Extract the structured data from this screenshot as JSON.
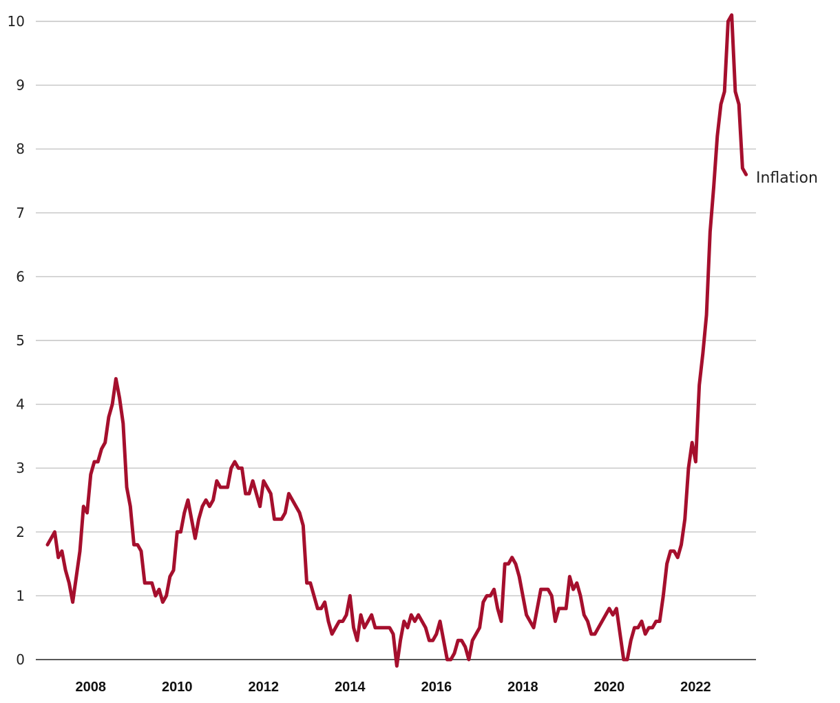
{
  "chart_data": {
    "type": "line",
    "title": "",
    "xlabel": "",
    "ylabel": "",
    "ylim": [
      0,
      10
    ],
    "xlim": [
      "2007-01",
      "2023-03"
    ],
    "grid": true,
    "legend": "none",
    "y_ticks": [
      "0",
      "1",
      "2",
      "3",
      "4",
      "5",
      "6",
      "7",
      "8",
      "9",
      "10"
    ],
    "x_ticks": [
      "2008",
      "2010",
      "2012",
      "2014",
      "2016",
      "2018",
      "2020",
      "2022"
    ],
    "colors": {
      "series": "#a50f2d",
      "grid": "#c4c4c4",
      "axis": "#222222"
    },
    "series": [
      {
        "name": "Inflation",
        "points": [
          [
            "2007-01",
            1.8
          ],
          [
            "2007-02",
            1.9
          ],
          [
            "2007-03",
            2.0
          ],
          [
            "2007-04",
            1.6
          ],
          [
            "2007-05",
            1.7
          ],
          [
            "2007-06",
            1.4
          ],
          [
            "2007-07",
            1.2
          ],
          [
            "2007-08",
            0.9
          ],
          [
            "2007-09",
            1.3
          ],
          [
            "2007-10",
            1.7
          ],
          [
            "2007-11",
            2.4
          ],
          [
            "2007-12",
            2.3
          ],
          [
            "2008-01",
            2.9
          ],
          [
            "2008-02",
            3.1
          ],
          [
            "2008-03",
            3.1
          ],
          [
            "2008-04",
            3.3
          ],
          [
            "2008-05",
            3.4
          ],
          [
            "2008-06",
            3.8
          ],
          [
            "2008-07",
            4.0
          ],
          [
            "2008-08",
            4.4
          ],
          [
            "2008-09",
            4.1
          ],
          [
            "2008-10",
            3.7
          ],
          [
            "2008-11",
            2.7
          ],
          [
            "2008-12",
            2.4
          ],
          [
            "2009-01",
            1.8
          ],
          [
            "2009-02",
            1.8
          ],
          [
            "2009-03",
            1.7
          ],
          [
            "2009-04",
            1.2
          ],
          [
            "2009-05",
            1.2
          ],
          [
            "2009-06",
            1.2
          ],
          [
            "2009-07",
            1.0
          ],
          [
            "2009-08",
            1.1
          ],
          [
            "2009-09",
            0.9
          ],
          [
            "2009-10",
            1.0
          ],
          [
            "2009-11",
            1.3
          ],
          [
            "2009-12",
            1.4
          ],
          [
            "2010-01",
            2.0
          ],
          [
            "2010-02",
            2.0
          ],
          [
            "2010-03",
            2.3
          ],
          [
            "2010-04",
            2.5
          ],
          [
            "2010-05",
            2.2
          ],
          [
            "2010-06",
            1.9
          ],
          [
            "2010-07",
            2.2
          ],
          [
            "2010-08",
            2.4
          ],
          [
            "2010-09",
            2.5
          ],
          [
            "2010-10",
            2.4
          ],
          [
            "2010-11",
            2.5
          ],
          [
            "2010-12",
            2.8
          ],
          [
            "2011-01",
            2.7
          ],
          [
            "2011-02",
            2.7
          ],
          [
            "2011-03",
            2.7
          ],
          [
            "2011-04",
            3.0
          ],
          [
            "2011-05",
            3.1
          ],
          [
            "2011-06",
            3.0
          ],
          [
            "2011-07",
            3.0
          ],
          [
            "2011-08",
            2.6
          ],
          [
            "2011-09",
            2.6
          ],
          [
            "2011-10",
            2.8
          ],
          [
            "2011-11",
            2.6
          ],
          [
            "2011-12",
            2.4
          ],
          [
            "2012-01",
            2.8
          ],
          [
            "2012-02",
            2.7
          ],
          [
            "2012-03",
            2.6
          ],
          [
            "2012-04",
            2.2
          ],
          [
            "2012-05",
            2.2
          ],
          [
            "2012-06",
            2.2
          ],
          [
            "2012-07",
            2.3
          ],
          [
            "2012-08",
            2.6
          ],
          [
            "2012-09",
            2.5
          ],
          [
            "2012-10",
            2.4
          ],
          [
            "2012-11",
            2.3
          ],
          [
            "2012-12",
            2.1
          ],
          [
            "2013-01",
            1.2
          ],
          [
            "2013-02",
            1.2
          ],
          [
            "2013-03",
            1.0
          ],
          [
            "2013-04",
            0.8
          ],
          [
            "2013-05",
            0.8
          ],
          [
            "2013-06",
            0.9
          ],
          [
            "2013-07",
            0.6
          ],
          [
            "2013-08",
            0.4
          ],
          [
            "2013-09",
            0.5
          ],
          [
            "2013-10",
            0.6
          ],
          [
            "2013-11",
            0.6
          ],
          [
            "2013-12",
            0.7
          ],
          [
            "2014-01",
            1.0
          ],
          [
            "2014-02",
            0.5
          ],
          [
            "2014-03",
            0.3
          ],
          [
            "2014-04",
            0.7
          ],
          [
            "2014-05",
            0.5
          ],
          [
            "2014-06",
            0.6
          ],
          [
            "2014-07",
            0.7
          ],
          [
            "2014-08",
            0.5
          ],
          [
            "2014-09",
            0.5
          ],
          [
            "2014-10",
            0.5
          ],
          [
            "2014-11",
            0.5
          ],
          [
            "2014-12",
            0.5
          ],
          [
            "2015-01",
            0.4
          ],
          [
            "2015-02",
            -0.1
          ],
          [
            "2015-03",
            0.3
          ],
          [
            "2015-04",
            0.6
          ],
          [
            "2015-05",
            0.5
          ],
          [
            "2015-06",
            0.7
          ],
          [
            "2015-07",
            0.6
          ],
          [
            "2015-08",
            0.7
          ],
          [
            "2015-09",
            0.6
          ],
          [
            "2015-10",
            0.5
          ],
          [
            "2015-11",
            0.3
          ],
          [
            "2015-12",
            0.3
          ],
          [
            "2016-01",
            0.4
          ],
          [
            "2016-02",
            0.6
          ],
          [
            "2016-03",
            0.3
          ],
          [
            "2016-04",
            0.0
          ],
          [
            "2016-05",
            0.0
          ],
          [
            "2016-06",
            0.1
          ],
          [
            "2016-07",
            0.3
          ],
          [
            "2016-08",
            0.3
          ],
          [
            "2016-09",
            0.2
          ],
          [
            "2016-10",
            0.0
          ],
          [
            "2016-11",
            0.3
          ],
          [
            "2016-12",
            0.4
          ],
          [
            "2017-01",
            0.5
          ],
          [
            "2017-02",
            0.9
          ],
          [
            "2017-03",
            1.0
          ],
          [
            "2017-04",
            1.0
          ],
          [
            "2017-05",
            1.1
          ],
          [
            "2017-06",
            0.8
          ],
          [
            "2017-07",
            0.6
          ],
          [
            "2017-08",
            1.5
          ],
          [
            "2017-09",
            1.5
          ],
          [
            "2017-10",
            1.6
          ],
          [
            "2017-11",
            1.5
          ],
          [
            "2017-12",
            1.3
          ],
          [
            "2018-01",
            1.0
          ],
          [
            "2018-02",
            0.7
          ],
          [
            "2018-03",
            0.6
          ],
          [
            "2018-04",
            0.5
          ],
          [
            "2018-05",
            0.8
          ],
          [
            "2018-06",
            1.1
          ],
          [
            "2018-07",
            1.1
          ],
          [
            "2018-08",
            1.1
          ],
          [
            "2018-09",
            1.0
          ],
          [
            "2018-10",
            0.6
          ],
          [
            "2018-11",
            0.8
          ],
          [
            "2018-12",
            0.8
          ],
          [
            "2019-01",
            0.8
          ],
          [
            "2019-02",
            1.3
          ],
          [
            "2019-03",
            1.1
          ],
          [
            "2019-04",
            1.2
          ],
          [
            "2019-05",
            1.0
          ],
          [
            "2019-06",
            0.7
          ],
          [
            "2019-07",
            0.6
          ],
          [
            "2019-08",
            0.4
          ],
          [
            "2019-09",
            0.4
          ],
          [
            "2019-10",
            0.5
          ],
          [
            "2019-11",
            0.6
          ],
          [
            "2019-12",
            0.7
          ],
          [
            "2020-01",
            0.8
          ],
          [
            "2020-02",
            0.7
          ],
          [
            "2020-03",
            0.8
          ],
          [
            "2020-04",
            0.4
          ],
          [
            "2020-05",
            0.0
          ],
          [
            "2020-06",
            0.0
          ],
          [
            "2020-07",
            0.3
          ],
          [
            "2020-08",
            0.5
          ],
          [
            "2020-09",
            0.5
          ],
          [
            "2020-10",
            0.6
          ],
          [
            "2020-11",
            0.4
          ],
          [
            "2020-12",
            0.5
          ],
          [
            "2021-01",
            0.5
          ],
          [
            "2021-02",
            0.6
          ],
          [
            "2021-03",
            0.6
          ],
          [
            "2021-04",
            1.0
          ],
          [
            "2021-05",
            1.5
          ],
          [
            "2021-06",
            1.7
          ],
          [
            "2021-07",
            1.7
          ],
          [
            "2021-08",
            1.6
          ],
          [
            "2021-09",
            1.8
          ],
          [
            "2021-10",
            2.2
          ],
          [
            "2021-11",
            3.0
          ],
          [
            "2021-12",
            3.4
          ],
          [
            "2022-01",
            3.1
          ],
          [
            "2022-02",
            4.3
          ],
          [
            "2022-03",
            4.8
          ],
          [
            "2022-04",
            5.4
          ],
          [
            "2022-05",
            6.7
          ],
          [
            "2022-06",
            7.4
          ],
          [
            "2022-07",
            8.2
          ],
          [
            "2022-08",
            8.7
          ],
          [
            "2022-09",
            8.9
          ],
          [
            "2022-10",
            10.0
          ],
          [
            "2022-11",
            10.1
          ],
          [
            "2022-12",
            8.9
          ],
          [
            "2023-01",
            8.7
          ],
          [
            "2023-02",
            7.7
          ],
          [
            "2023-03",
            7.6
          ]
        ]
      }
    ]
  }
}
